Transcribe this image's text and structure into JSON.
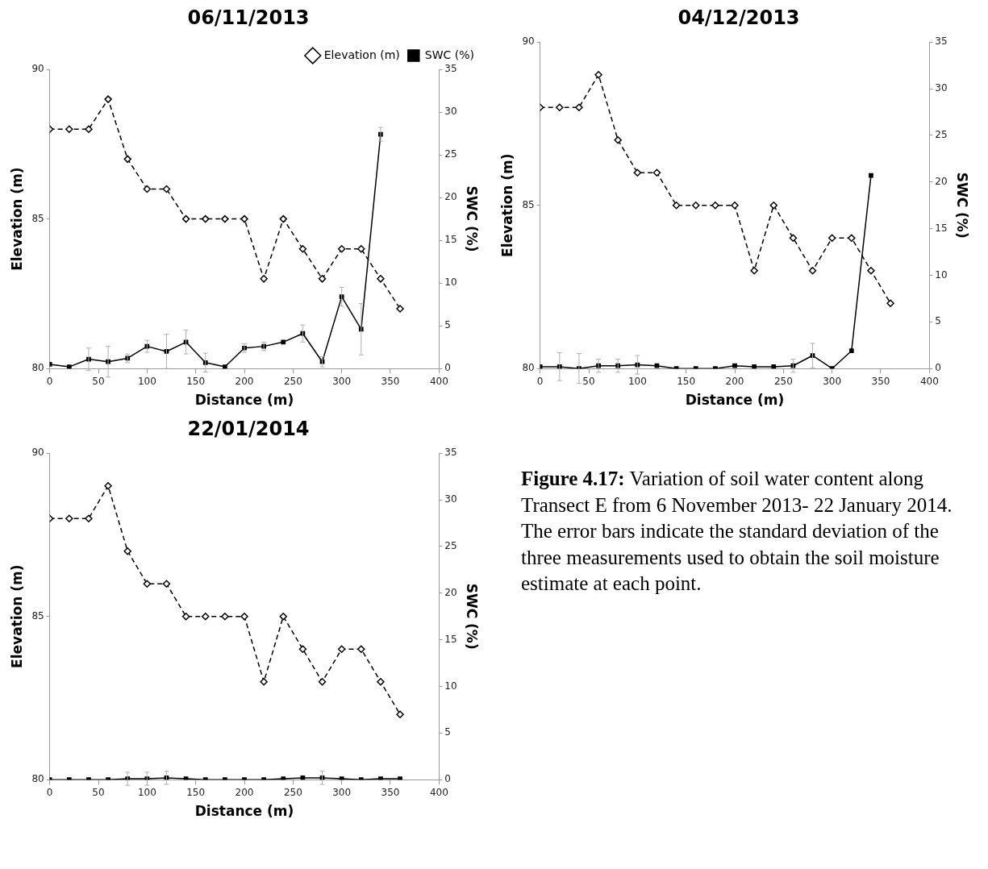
{
  "chart_data": [
    {
      "type": "line",
      "title": "06/11/2013",
      "xlabel": "Distance (m)",
      "ylabel": "Elevation (m)",
      "y2label": "SWC (%)",
      "xlim": [
        0,
        400
      ],
      "xticks": [
        0,
        50,
        100,
        150,
        200,
        250,
        300,
        350,
        400
      ],
      "ylim": [
        80,
        90
      ],
      "yticks": [
        80,
        85,
        90
      ],
      "y2lim": [
        0,
        35
      ],
      "y2ticks": [
        0,
        5,
        10,
        15,
        20,
        25,
        30,
        35
      ],
      "grid": false,
      "legend": "top right",
      "series": [
        {
          "name": "Elevation (m)",
          "color": "#000000",
          "marker": "diamond",
          "line_style": "dashed",
          "x": [
            0,
            20,
            40,
            60,
            80,
            100,
            120,
            140,
            160,
            180,
            200,
            220,
            240,
            260,
            280,
            300,
            320,
            340,
            360
          ],
          "values": [
            88,
            88,
            88,
            89,
            87,
            86,
            86,
            85,
            85,
            85,
            85,
            83,
            85,
            84,
            83,
            84,
            84,
            83,
            82
          ]
        },
        {
          "name": "SWC (%)",
          "color": "#000000",
          "marker": "square",
          "line_style": "solid",
          "axis": "y2",
          "x": [
            0,
            20,
            40,
            60,
            80,
            100,
            120,
            140,
            160,
            180,
            200,
            220,
            240,
            260,
            280,
            300,
            320,
            340
          ],
          "values": [
            0.5,
            0.2,
            1.1,
            0.8,
            1.2,
            2.6,
            2.0,
            3.1,
            0.7,
            0.2,
            2.4,
            2.6,
            3.1,
            4.1,
            0.8,
            8.4,
            4.6,
            27.4
          ],
          "errors": [
            null,
            null,
            1.3,
            1.8,
            0.5,
            0.7,
            2.0,
            1.4,
            1.1,
            null,
            0.5,
            0.5,
            null,
            1.0,
            0.6,
            1.1,
            3.0,
            0.8
          ]
        }
      ]
    },
    {
      "type": "line",
      "title": "04/12/2013",
      "xlabel": "Distance (m)",
      "ylabel": "Elevation (m)",
      "y2label": "SWC (%)",
      "xlim": [
        0,
        400
      ],
      "xticks": [
        0,
        50,
        100,
        150,
        200,
        250,
        300,
        350,
        400
      ],
      "ylim": [
        80,
        90
      ],
      "yticks": [
        80,
        85,
        90
      ],
      "y2lim": [
        0,
        35
      ],
      "y2ticks": [
        0,
        5,
        10,
        15,
        20,
        25,
        30,
        35
      ],
      "grid": false,
      "series": [
        {
          "color": "#000000",
          "marker": "diamond",
          "line_style": "dashed",
          "x": [
            0,
            20,
            40,
            60,
            80,
            100,
            120,
            140,
            160,
            180,
            200,
            220,
            240,
            260,
            280,
            300,
            320,
            340,
            360
          ],
          "values": [
            88,
            88,
            88,
            89,
            87,
            86,
            86,
            85,
            85,
            85,
            85,
            83,
            85,
            84,
            83,
            84,
            84,
            83,
            82
          ]
        },
        {
          "color": "#000000",
          "marker": "square",
          "line_style": "solid",
          "axis": "y2",
          "x": [
            0,
            20,
            40,
            60,
            80,
            100,
            120,
            140,
            160,
            180,
            200,
            220,
            240,
            260,
            280,
            300,
            320,
            340
          ],
          "values": [
            0.2,
            0.2,
            0.0,
            0.3,
            0.3,
            0.4,
            0.3,
            0.0,
            0.0,
            0.0,
            0.3,
            0.2,
            0.2,
            0.3,
            1.4,
            0.0,
            1.9,
            20.7
          ],
          "errors": [
            null,
            1.5,
            1.6,
            0.7,
            0.7,
            1.0,
            null,
            null,
            null,
            null,
            null,
            null,
            null,
            0.7,
            1.3,
            null,
            null,
            null
          ]
        }
      ]
    },
    {
      "type": "line",
      "title": "22/01/2014",
      "xlabel": "Distance (m)",
      "ylabel": "Elevation (m)",
      "y2label": "SWC (%)",
      "xlim": [
        0,
        400
      ],
      "xticks": [
        0,
        50,
        100,
        150,
        200,
        250,
        300,
        350,
        400
      ],
      "ylim": [
        80,
        90
      ],
      "yticks": [
        80,
        85,
        90
      ],
      "y2lim": [
        0,
        35
      ],
      "y2ticks": [
        0,
        5,
        10,
        15,
        20,
        25,
        30,
        35
      ],
      "grid": false,
      "series": [
        {
          "color": "#000000",
          "marker": "diamond",
          "line_style": "dashed",
          "x": [
            0,
            20,
            40,
            60,
            80,
            100,
            120,
            140,
            160,
            180,
            200,
            220,
            240,
            260,
            280,
            300,
            320,
            340,
            360
          ],
          "values": [
            88,
            88,
            88,
            89,
            87,
            86,
            86,
            85,
            85,
            85,
            85,
            83,
            85,
            84,
            83,
            84,
            84,
            83,
            82
          ]
        },
        {
          "color": "#000000",
          "marker": "square",
          "line_style": "solid",
          "axis": "y2",
          "x": [
            0,
            20,
            40,
            60,
            80,
            100,
            120,
            140,
            160,
            180,
            200,
            220,
            240,
            260,
            280,
            300,
            320,
            340,
            360
          ],
          "values": [
            0.0,
            0.0,
            0.0,
            0.0,
            0.1,
            0.1,
            0.2,
            0.1,
            0.0,
            0.0,
            0.0,
            0.0,
            0.1,
            0.2,
            0.2,
            0.1,
            0.0,
            0.1,
            0.1
          ],
          "errors": [
            null,
            null,
            null,
            null,
            0.7,
            0.7,
            0.7,
            null,
            null,
            null,
            null,
            null,
            null,
            null,
            0.7,
            null,
            null,
            null,
            null
          ]
        }
      ]
    },
    {
      "type": "other",
      "title": "Figure 4.17:",
      "annotations": [
        "Variation of soil water content along Transect E from 6 November 2013- 22 January 2014. The error bars indicate the standard deviation of the three measurements used to obtain the soil moisture estimate at each point."
      ]
    }
  ]
}
